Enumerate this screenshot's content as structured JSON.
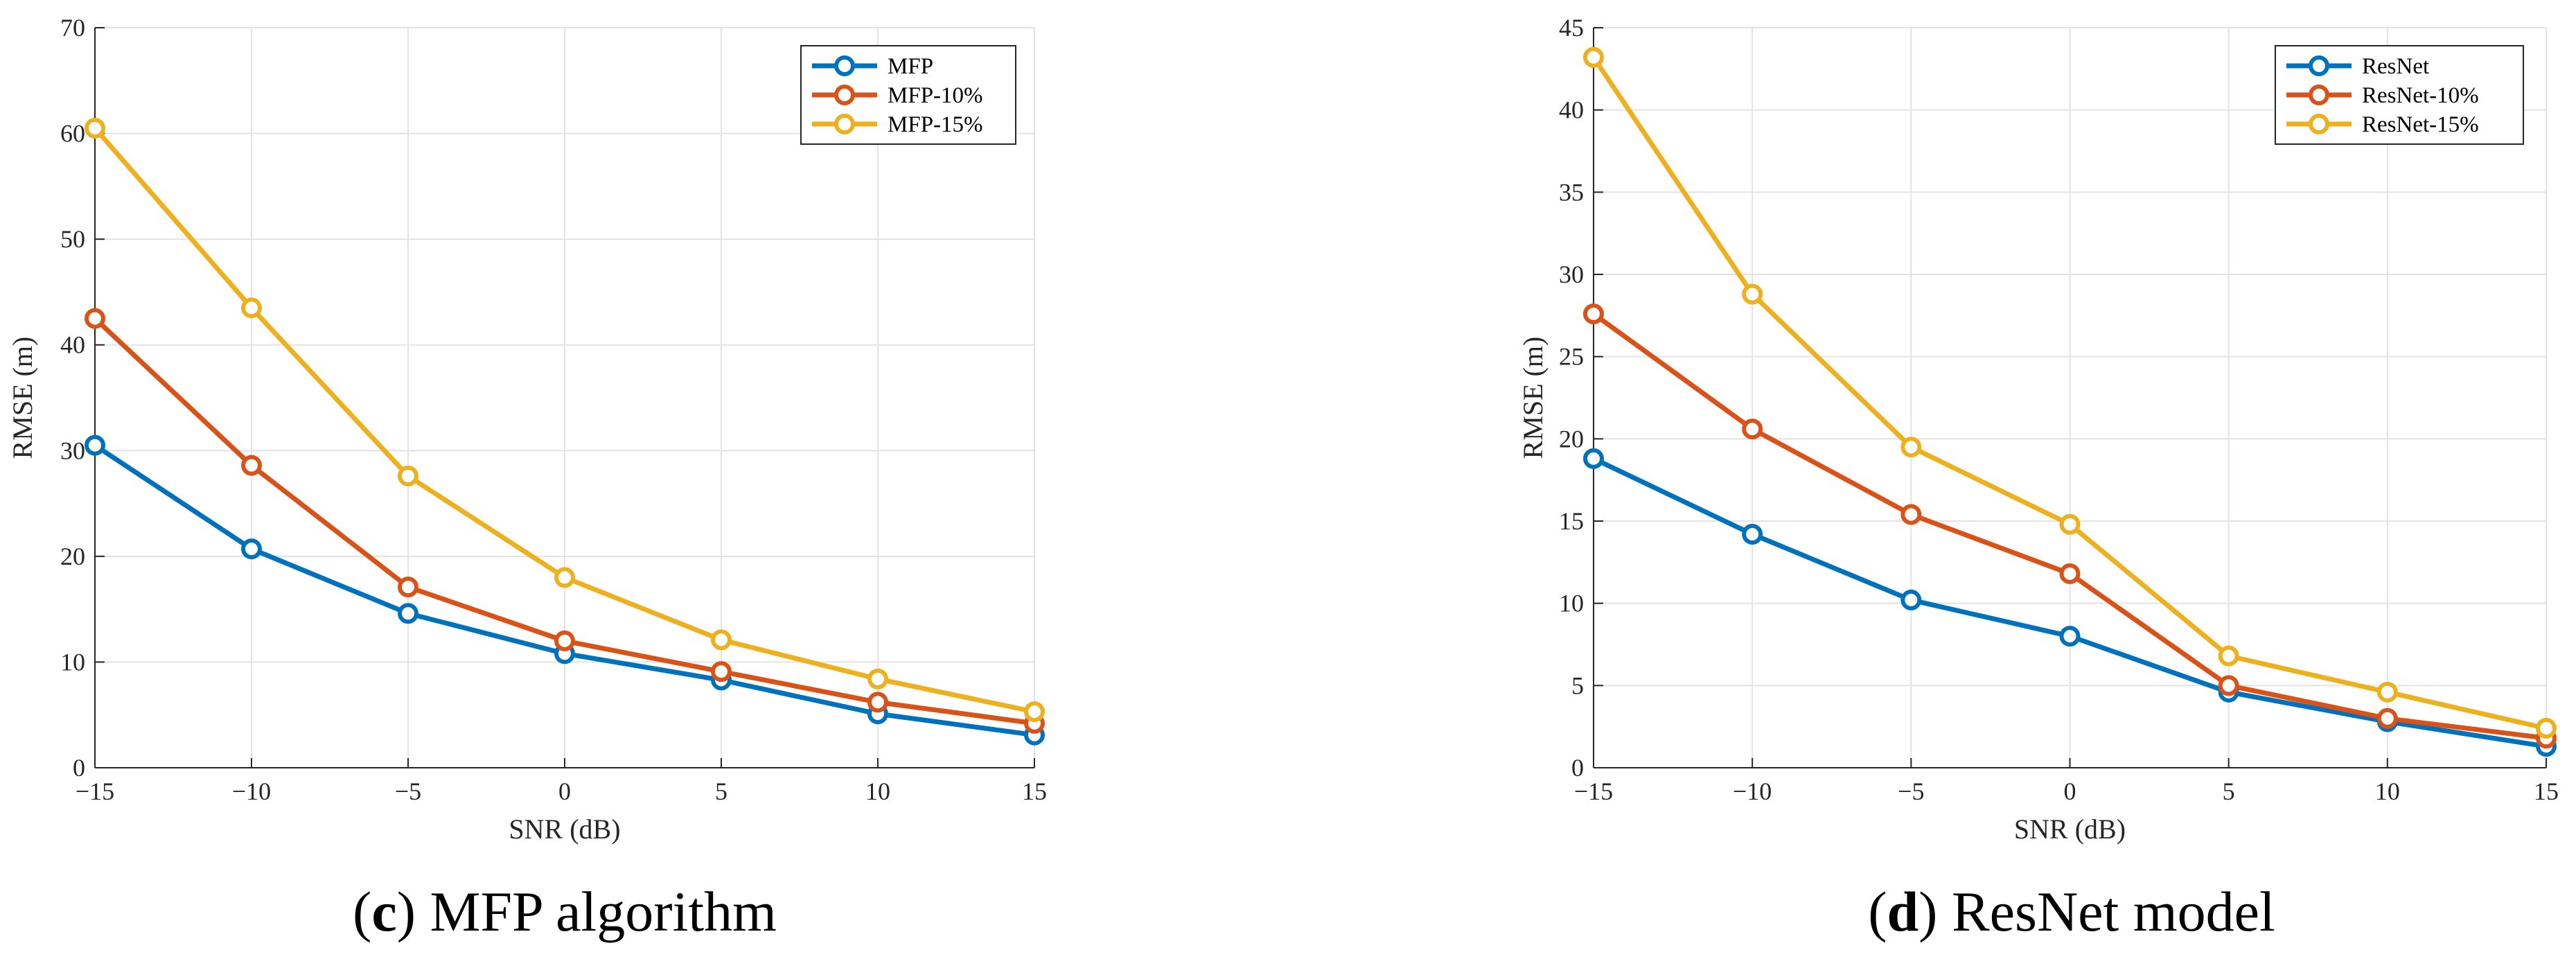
{
  "chart_data": [
    {
      "type": "line",
      "caption": {
        "letter": "c",
        "text": "MFP algorithm"
      },
      "xlabel": "SNR (dB)",
      "ylabel": "RMSE (m)",
      "x": [
        -15,
        -10,
        -5,
        0,
        5,
        10,
        15
      ],
      "xlim": [
        -15,
        15
      ],
      "ylim": [
        0,
        70
      ],
      "xticks": [
        -15,
        -10,
        -5,
        0,
        5,
        10,
        15
      ],
      "xtick_labels": [
        "−15",
        "−10",
        "−5",
        "0",
        "5",
        "10",
        "15"
      ],
      "yticks": [
        0,
        10,
        20,
        30,
        40,
        50,
        60,
        70
      ],
      "ytick_labels": [
        "0",
        "10",
        "20",
        "30",
        "40",
        "50",
        "60",
        "70"
      ],
      "grid": true,
      "legend_position": "top-right",
      "series": [
        {
          "name": "MFP",
          "color": "#0072BD",
          "values": [
            30.5,
            20.7,
            14.6,
            10.8,
            8.3,
            5.1,
            3.1
          ]
        },
        {
          "name": "MFP-10%",
          "color": "#D95319",
          "values": [
            42.5,
            28.6,
            17.1,
            12.0,
            9.1,
            6.2,
            4.2
          ]
        },
        {
          "name": "MFP-15%",
          "color": "#EDB120",
          "values": [
            60.5,
            43.5,
            27.6,
            18.0,
            12.1,
            8.4,
            5.3
          ]
        }
      ]
    },
    {
      "type": "line",
      "caption": {
        "letter": "d",
        "text": "ResNet model"
      },
      "xlabel": "SNR (dB)",
      "ylabel": "RMSE (m)",
      "x": [
        -15,
        -10,
        -5,
        0,
        5,
        10,
        15
      ],
      "xlim": [
        -15,
        15
      ],
      "ylim": [
        0,
        45
      ],
      "xticks": [
        -15,
        -10,
        -5,
        0,
        5,
        10,
        15
      ],
      "xtick_labels": [
        "−15",
        "−10",
        "−5",
        "0",
        "5",
        "10",
        "15"
      ],
      "yticks": [
        0,
        5,
        10,
        15,
        20,
        25,
        30,
        35,
        40,
        45
      ],
      "ytick_labels": [
        "0",
        "5",
        "10",
        "15",
        "20",
        "25",
        "30",
        "35",
        "40",
        "45"
      ],
      "grid": true,
      "legend_position": "top-right",
      "series": [
        {
          "name": "ResNet",
          "color": "#0072BD",
          "values": [
            18.8,
            14.2,
            10.2,
            8.0,
            4.6,
            2.8,
            1.3
          ]
        },
        {
          "name": "ResNet-10%",
          "color": "#D95319",
          "values": [
            27.6,
            20.6,
            15.4,
            11.8,
            5.0,
            3.0,
            1.8
          ]
        },
        {
          "name": "ResNet-15%",
          "color": "#EDB120",
          "values": [
            43.2,
            28.8,
            19.5,
            14.8,
            6.8,
            4.6,
            2.4
          ]
        }
      ]
    }
  ]
}
